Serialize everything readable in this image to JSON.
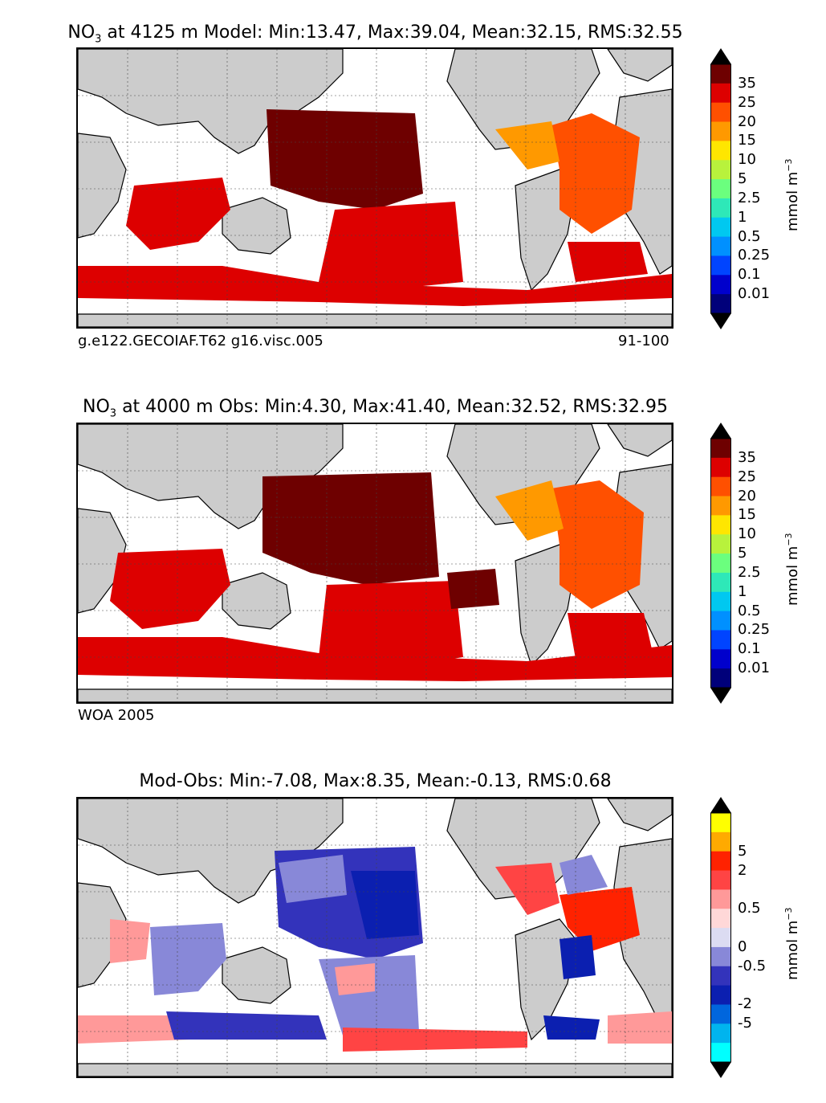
{
  "panels": [
    {
      "title_main": "NO",
      "title_sub": "3",
      "title_rest": " at 4125 m Model: Min:13.47, Max:39.04, Mean:32.15, RMS:32.55",
      "caption_left": "g.e122.GECOIAF.T62 g16.visc.005",
      "caption_right": "91-100"
    },
    {
      "title_main": "NO",
      "title_sub": "3",
      "title_rest": " at 4000 m Obs: Min:4.30, Max:41.40, Mean:32.52, RMS:32.95",
      "caption_left": "WOA 2005",
      "caption_right": ""
    },
    {
      "title_main": "Mod-Obs: Min:-7.08, Max:8.35, Mean:-0.13, RMS:0.68",
      "title_sub": "",
      "title_rest": "",
      "caption_left": "",
      "caption_right": ""
    }
  ],
  "colorbar_abs": {
    "ticks": [
      "35",
      "25",
      "20",
      "15",
      "10",
      "5",
      "2.5",
      "1",
      "0.5",
      "0.25",
      "0.1",
      "0.01"
    ],
    "colors": [
      "#6e0000",
      "#dd0000",
      "#ff5000",
      "#ff9900",
      "#ffe600",
      "#b8f23c",
      "#6bff7e",
      "#2ee8b8",
      "#00c8f0",
      "#0090ff",
      "#0044ff",
      "#0000cc",
      "#00007a"
    ],
    "over_color": "#000000",
    "under_color": "#000000",
    "units": "mmol m",
    "units_sup": "−3"
  },
  "colorbar_diff": {
    "ticks": [
      "5",
      "2",
      "0.5",
      "0",
      "-0.5",
      "-2",
      "-5"
    ],
    "colors": [
      "#ffff00",
      "#ffaa00",
      "#ff2200",
      "#ff4444",
      "#ff9999",
      "#ffd8d8",
      "#dcdcf2",
      "#8888d8",
      "#3333bb",
      "#0b1fb0",
      "#0066dd",
      "#00b4ee",
      "#00ffff"
    ],
    "over_color": "#000000",
    "under_color": "#000000",
    "units": "mmol m",
    "units_sup": "−3"
  }
}
